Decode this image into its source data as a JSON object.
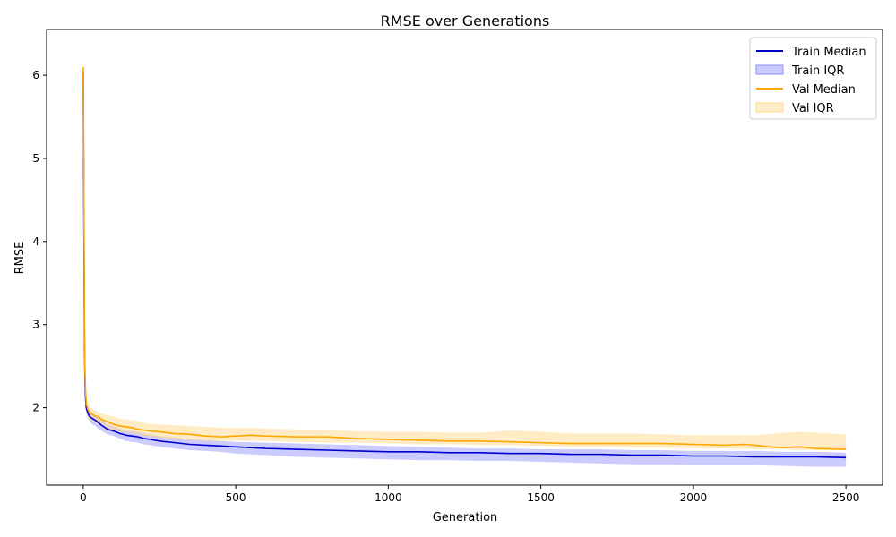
{
  "chart_data": {
    "type": "line",
    "title": "RMSE over Generations",
    "xlabel": "Generation",
    "ylabel": "RMSE",
    "xlim": [
      -120,
      2620
    ],
    "ylim": [
      1.07,
      6.55
    ],
    "xticks": [
      0,
      500,
      1000,
      1500,
      2000,
      2500
    ],
    "yticks": [
      2,
      3,
      4,
      5,
      6
    ],
    "legend_position": "top-right",
    "grid": false,
    "legend": [
      {
        "label": "Train Median",
        "kind": "line",
        "color": "#0000cd"
      },
      {
        "label": "Train IQR",
        "kind": "band",
        "color": "#8c8cff"
      },
      {
        "label": "Val Median",
        "kind": "line",
        "color": "#ffa500"
      },
      {
        "label": "Val IQR",
        "kind": "band",
        "color": "#ffd98a"
      }
    ],
    "series": [
      {
        "name": "Train Median",
        "color": "#0000cd",
        "x": [
          0,
          2,
          4,
          6,
          8,
          10,
          15,
          20,
          30,
          40,
          50,
          60,
          80,
          100,
          120,
          140,
          160,
          180,
          200,
          220,
          250,
          300,
          350,
          400,
          450,
          500,
          600,
          700,
          800,
          900,
          1000,
          1100,
          1200,
          1300,
          1400,
          1500,
          1600,
          1700,
          1800,
          1900,
          2000,
          2100,
          2200,
          2300,
          2400,
          2500
        ],
        "y": [
          6.05,
          4.5,
          2.9,
          2.3,
          2.1,
          2.0,
          1.94,
          1.9,
          1.87,
          1.85,
          1.82,
          1.79,
          1.74,
          1.72,
          1.69,
          1.67,
          1.66,
          1.65,
          1.63,
          1.62,
          1.6,
          1.58,
          1.56,
          1.55,
          1.54,
          1.53,
          1.51,
          1.5,
          1.49,
          1.48,
          1.47,
          1.47,
          1.46,
          1.46,
          1.45,
          1.45,
          1.44,
          1.44,
          1.43,
          1.43,
          1.42,
          1.42,
          1.41,
          1.41,
          1.41,
          1.4
        ]
      },
      {
        "name": "Train IQR",
        "color": "#8c8cff",
        "opacity": 0.45,
        "x": [
          0,
          2,
          4,
          6,
          8,
          10,
          15,
          20,
          30,
          40,
          50,
          60,
          80,
          100,
          120,
          140,
          160,
          180,
          200,
          220,
          250,
          300,
          350,
          400,
          450,
          500,
          600,
          700,
          800,
          900,
          1000,
          1100,
          1200,
          1300,
          1400,
          1500,
          1600,
          1700,
          1800,
          1900,
          2000,
          2100,
          2200,
          2300,
          2400,
          2500
        ],
        "lower": [
          5.9,
          4.2,
          2.7,
          2.2,
          2.0,
          1.93,
          1.88,
          1.84,
          1.8,
          1.78,
          1.75,
          1.72,
          1.68,
          1.66,
          1.63,
          1.6,
          1.59,
          1.58,
          1.56,
          1.55,
          1.53,
          1.51,
          1.49,
          1.48,
          1.47,
          1.45,
          1.43,
          1.41,
          1.4,
          1.39,
          1.38,
          1.37,
          1.37,
          1.36,
          1.36,
          1.35,
          1.34,
          1.33,
          1.32,
          1.32,
          1.31,
          1.31,
          1.31,
          1.3,
          1.29,
          1.29
        ],
        "upper": [
          6.2,
          4.8,
          3.1,
          2.4,
          2.15,
          2.05,
          1.99,
          1.95,
          1.92,
          1.9,
          1.88,
          1.85,
          1.8,
          1.78,
          1.75,
          1.73,
          1.72,
          1.71,
          1.69,
          1.68,
          1.66,
          1.64,
          1.62,
          1.61,
          1.6,
          1.59,
          1.58,
          1.57,
          1.56,
          1.55,
          1.54,
          1.53,
          1.52,
          1.51,
          1.51,
          1.5,
          1.5,
          1.5,
          1.49,
          1.49,
          1.48,
          1.48,
          1.48,
          1.47,
          1.47,
          1.46
        ]
      },
      {
        "name": "Val Median",
        "color": "#ffa500",
        "x": [
          0,
          2,
          4,
          6,
          8,
          10,
          15,
          20,
          30,
          40,
          50,
          60,
          80,
          100,
          120,
          140,
          160,
          180,
          200,
          220,
          250,
          300,
          350,
          400,
          450,
          500,
          550,
          600,
          700,
          800,
          900,
          1000,
          1100,
          1200,
          1300,
          1400,
          1500,
          1600,
          1700,
          1800,
          1900,
          2000,
          2100,
          2170,
          2200,
          2250,
          2300,
          2350,
          2400,
          2500
        ],
        "y": [
          6.1,
          5.0,
          3.1,
          2.4,
          2.2,
          2.05,
          1.98,
          1.95,
          1.92,
          1.9,
          1.89,
          1.86,
          1.83,
          1.8,
          1.78,
          1.77,
          1.76,
          1.74,
          1.73,
          1.72,
          1.71,
          1.69,
          1.68,
          1.66,
          1.65,
          1.66,
          1.67,
          1.66,
          1.65,
          1.65,
          1.63,
          1.62,
          1.61,
          1.6,
          1.6,
          1.59,
          1.58,
          1.57,
          1.57,
          1.57,
          1.57,
          1.56,
          1.55,
          1.56,
          1.55,
          1.53,
          1.52,
          1.53,
          1.51,
          1.5
        ]
      },
      {
        "name": "Val IQR",
        "color": "#ffd98a",
        "opacity": 0.5,
        "x": [
          0,
          2,
          4,
          6,
          8,
          10,
          15,
          20,
          30,
          40,
          50,
          60,
          80,
          100,
          120,
          140,
          160,
          180,
          200,
          220,
          250,
          300,
          350,
          400,
          450,
          500,
          550,
          600,
          700,
          800,
          900,
          1000,
          1100,
          1200,
          1300,
          1350,
          1400,
          1500,
          1600,
          1700,
          1800,
          1900,
          2000,
          2100,
          2200,
          2300,
          2350,
          2400,
          2500
        ],
        "lower": [
          5.95,
          4.7,
          2.9,
          2.25,
          2.05,
          1.95,
          1.88,
          1.85,
          1.83,
          1.82,
          1.8,
          1.78,
          1.75,
          1.73,
          1.71,
          1.7,
          1.69,
          1.68,
          1.66,
          1.65,
          1.64,
          1.62,
          1.61,
          1.6,
          1.6,
          1.6,
          1.6,
          1.6,
          1.59,
          1.58,
          1.58,
          1.57,
          1.56,
          1.56,
          1.55,
          1.55,
          1.55,
          1.54,
          1.53,
          1.53,
          1.52,
          1.52,
          1.51,
          1.51,
          1.5,
          1.5,
          1.49,
          1.49,
          1.49
        ],
        "upper": [
          6.1,
          5.2,
          3.3,
          2.5,
          2.3,
          2.15,
          2.05,
          2.02,
          1.98,
          1.97,
          1.95,
          1.93,
          1.91,
          1.89,
          1.87,
          1.86,
          1.85,
          1.84,
          1.82,
          1.81,
          1.8,
          1.79,
          1.78,
          1.77,
          1.76,
          1.76,
          1.76,
          1.75,
          1.74,
          1.73,
          1.72,
          1.71,
          1.71,
          1.7,
          1.7,
          1.71,
          1.73,
          1.71,
          1.69,
          1.69,
          1.69,
          1.68,
          1.67,
          1.67,
          1.67,
          1.7,
          1.71,
          1.7,
          1.68
        ]
      }
    ]
  }
}
